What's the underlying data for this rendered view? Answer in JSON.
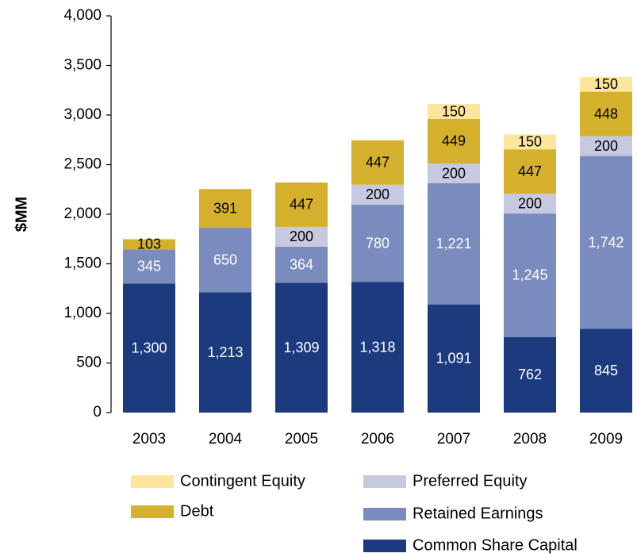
{
  "chart_data": {
    "type": "stacked_bar",
    "ylabel": "$MM",
    "categories": [
      "2003",
      "2004",
      "2005",
      "2006",
      "2007",
      "2008",
      "2009"
    ],
    "series": [
      {
        "name": "Common Share Capital",
        "color": "#1c3a7e",
        "values": [
          1300,
          1213,
          1309,
          1318,
          1091,
          762,
          845
        ],
        "value_labels": [
          "1,300",
          "1,213",
          "1,309",
          "1,318",
          "1,091",
          "762",
          "845"
        ]
      },
      {
        "name": "Retained Earnings",
        "color": "#7a8bbd",
        "values": [
          345,
          650,
          364,
          780,
          1221,
          1245,
          1742
        ],
        "value_labels": [
          "345",
          "650",
          "364",
          "780",
          "1,221",
          "1,245",
          "1,742"
        ]
      },
      {
        "name": "Preferred Equity",
        "color": "#c6c9e0",
        "values": [
          null,
          null,
          200,
          200,
          200,
          200,
          200
        ],
        "value_labels": [
          null,
          null,
          "200",
          "200",
          "200",
          "200",
          "200"
        ]
      },
      {
        "name": "Debt",
        "color": "#d4b02c",
        "values": [
          103,
          391,
          447,
          447,
          449,
          447,
          448
        ],
        "value_labels": [
          "103",
          "391",
          "447",
          "447",
          "449",
          "447",
          "448"
        ]
      },
      {
        "name": "Contingent Equity",
        "color": "#fee59c",
        "values": [
          null,
          null,
          null,
          null,
          150,
          150,
          150
        ],
        "value_labels": [
          null,
          null,
          null,
          null,
          "150",
          "150",
          "150"
        ]
      }
    ],
    "ylim": [
      0,
      4000
    ],
    "yticks": [
      0,
      500,
      {
        "value": 1000,
        "label": "1,000"
      },
      {
        "value": 1500,
        "label": "1,500"
      },
      {
        "value": 2000,
        "label": "2,000"
      },
      {
        "value": 2500,
        "label": "2,500"
      },
      {
        "value": 3000,
        "label": "3,000"
      },
      {
        "value": 3500,
        "label": "3,500"
      },
      {
        "value": 4000,
        "label": "4,000"
      }
    ],
    "label_colors": [
      "#ffffff",
      "#ffffff",
      "#000000",
      "#000000",
      "#000000"
    ]
  }
}
